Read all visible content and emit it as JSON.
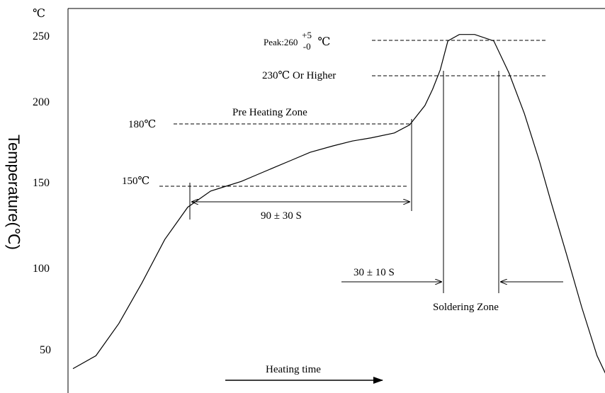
{
  "chart_data": {
    "type": "line",
    "title": "",
    "ylabel": "Temperature(℃)",
    "y_unit": "℃",
    "ylim": [
      35,
      262
    ],
    "y_ticks": [
      "250",
      "200",
      "150",
      "100",
      "50"
    ],
    "x_arrow_label": "Heating time",
    "series": [
      {
        "x": [
          0,
          6,
          12,
          18,
          24,
          30,
          36,
          40,
          44,
          48,
          53,
          57,
          62,
          68,
          73,
          78,
          84,
          88,
          92,
          94,
          96,
          98,
          101,
          105,
          110,
          114,
          118,
          120,
          122,
          125,
          129,
          133,
          137,
          141
        ],
        "y": [
          37,
          45,
          65,
          90,
          117,
          137,
          147,
          150,
          153,
          157,
          162,
          166,
          171,
          175,
          178,
          180,
          183,
          188,
          200,
          210,
          222,
          240,
          244,
          244,
          240,
          220,
          195,
          180,
          165,
          140,
          108,
          75,
          45,
          25
        ]
      }
    ],
    "annotations": {
      "peak": {
        "prefix": "Peak:260",
        "sup": "+5",
        "sub": "-0",
        "unit": "℃"
      },
      "above230": "230℃ Or Higher",
      "t180": "180℃",
      "t150": "150℃",
      "preheat_zone": "Pre Heating Zone",
      "preheat_time": "90 ± 30 S",
      "solder_time": "30 ± 10 S",
      "solder_zone": "Soldering Zone"
    }
  }
}
